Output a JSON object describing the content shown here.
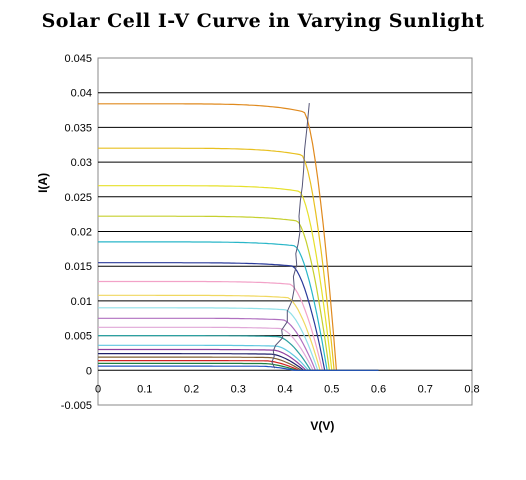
{
  "chart_data": {
    "type": "line",
    "title": "Solar Cell I-V Curve in Varying Sunlight",
    "xlabel": "V(V)",
    "ylabel": "I(A)",
    "xlim": [
      0,
      0.8
    ],
    "ylim": [
      -0.005,
      0.045
    ],
    "x_ticks": [
      "0",
      "0.1",
      "0.2",
      "0.3",
      "0.4",
      "0.5",
      "0.6",
      "0.7",
      "0.8"
    ],
    "y_ticks": [
      "-0.005",
      "0",
      "0.005",
      "0.01",
      "0.015",
      "0.02",
      "0.025",
      "0.03",
      "0.035",
      "0.04",
      "0.045"
    ],
    "grid": "horizontal",
    "legend": "none",
    "series": [
      {
        "isc": 0.0384,
        "voc": 0.51,
        "v_knee": 0.44,
        "color": "#e08a1e"
      },
      {
        "isc": 0.032,
        "voc": 0.505,
        "v_knee": 0.435,
        "color": "#e8c020"
      },
      {
        "isc": 0.0266,
        "voc": 0.5,
        "v_knee": 0.43,
        "color": "#e6e02a"
      },
      {
        "isc": 0.0222,
        "voc": 0.495,
        "v_knee": 0.425,
        "color": "#c6d02e"
      },
      {
        "isc": 0.0185,
        "voc": 0.49,
        "v_knee": 0.42,
        "color": "#29b6c8"
      },
      {
        "isc": 0.0155,
        "voc": 0.485,
        "v_knee": 0.415,
        "color": "#2a3a9a"
      },
      {
        "isc": 0.0128,
        "voc": 0.48,
        "v_knee": 0.41,
        "color": "#f2a2c8"
      },
      {
        "isc": 0.0108,
        "voc": 0.475,
        "v_knee": 0.405,
        "color": "#f0d860"
      },
      {
        "isc": 0.009,
        "voc": 0.47,
        "v_knee": 0.4,
        "color": "#90e0e8"
      },
      {
        "isc": 0.0075,
        "voc": 0.465,
        "v_knee": 0.395,
        "color": "#b070c0"
      },
      {
        "isc": 0.0062,
        "voc": 0.46,
        "v_knee": 0.39,
        "color": "#e0a8d8"
      },
      {
        "isc": 0.005,
        "voc": 0.455,
        "v_knee": 0.385,
        "color": "#2ca0a0"
      },
      {
        "isc": 0.0036,
        "voc": 0.45,
        "v_knee": 0.38,
        "color": "#60c8e0"
      },
      {
        "isc": 0.003,
        "voc": 0.445,
        "v_knee": 0.375,
        "color": "#9040a0"
      },
      {
        "isc": 0.0024,
        "voc": 0.44,
        "v_knee": 0.37,
        "color": "#20206a"
      },
      {
        "isc": 0.0019,
        "voc": 0.435,
        "v_knee": 0.365,
        "color": "#806030"
      },
      {
        "isc": 0.0014,
        "voc": 0.43,
        "v_knee": 0.36,
        "color": "#d02020"
      },
      {
        "isc": 0.001,
        "voc": 0.425,
        "v_knee": 0.355,
        "color": "#208040"
      },
      {
        "isc": 0.0006,
        "voc": 0.42,
        "v_knee": 0.35,
        "color": "#2050c0"
      }
    ],
    "mpp_curve": {
      "color": "#555577",
      "points": [
        [
          0.378,
          0.0003
        ],
        [
          0.372,
          0.0012
        ],
        [
          0.377,
          0.002
        ],
        [
          0.375,
          0.0028
        ],
        [
          0.38,
          0.0036
        ],
        [
          0.395,
          0.0047
        ],
        [
          0.393,
          0.0058
        ],
        [
          0.405,
          0.007
        ],
        [
          0.405,
          0.0085
        ],
        [
          0.415,
          0.01
        ],
        [
          0.42,
          0.0118
        ],
        [
          0.418,
          0.0135
        ],
        [
          0.425,
          0.0152
        ],
        [
          0.423,
          0.0168
        ],
        [
          0.428,
          0.0182
        ],
        [
          0.432,
          0.02
        ],
        [
          0.43,
          0.0222
        ],
        [
          0.433,
          0.0245
        ],
        [
          0.437,
          0.0265
        ],
        [
          0.44,
          0.029
        ],
        [
          0.442,
          0.0318
        ],
        [
          0.447,
          0.035
        ],
        [
          0.452,
          0.0385
        ]
      ]
    }
  }
}
